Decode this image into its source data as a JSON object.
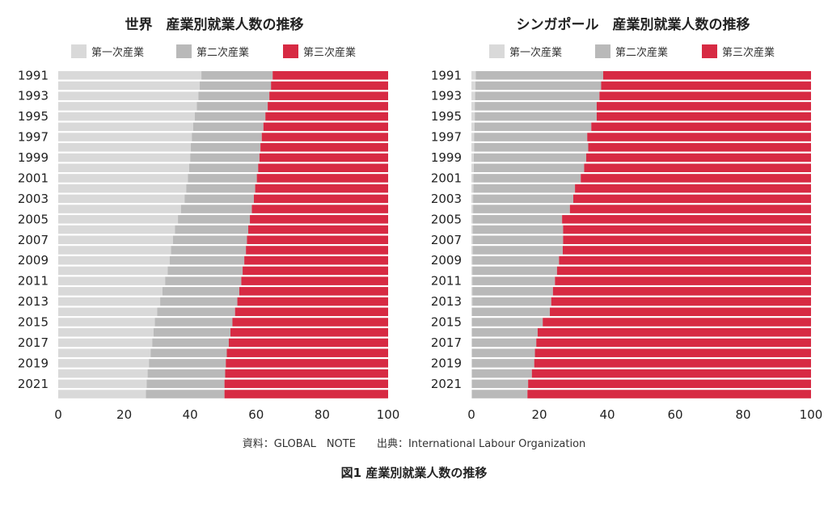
{
  "colors": {
    "primary": "#d9d9d9",
    "secondary": "#b9b9b9",
    "tertiary": "#d72a43"
  },
  "chart_data": [
    {
      "type": "bar",
      "orientation": "horizontal",
      "stacked": true,
      "title": "世界　産業別就業人数の推移",
      "categories": [
        1991,
        1992,
        1993,
        1994,
        1995,
        1996,
        1997,
        1998,
        1999,
        2000,
        2001,
        2002,
        2003,
        2004,
        2005,
        2006,
        2007,
        2008,
        2009,
        2010,
        2011,
        2012,
        2013,
        2014,
        2015,
        2016,
        2017,
        2018,
        2019,
        2020,
        2021,
        2022
      ],
      "category_tick_labels": [
        "1991",
        "1993",
        "1995",
        "1997",
        "1999",
        "2001",
        "2003",
        "2005",
        "2007",
        "2009",
        "2011",
        "2013",
        "2015",
        "2017",
        "2019",
        "2021"
      ],
      "series": [
        {
          "name": "第一次産業",
          "values": [
            43.4,
            42.9,
            42.5,
            42.0,
            41.4,
            40.9,
            40.5,
            40.2,
            40.0,
            39.7,
            39.3,
            38.8,
            38.3,
            37.2,
            36.3,
            35.4,
            34.8,
            34.2,
            33.8,
            33.2,
            32.4,
            31.6,
            30.9,
            30.0,
            29.3,
            28.9,
            28.5,
            28.0,
            27.5,
            27.1,
            26.8,
            26.6
          ]
        },
        {
          "name": "第二次産業",
          "values": [
            21.6,
            21.6,
            21.5,
            21.5,
            21.4,
            21.3,
            21.2,
            21.1,
            21.0,
            20.9,
            20.9,
            20.9,
            21.0,
            21.5,
            21.8,
            22.2,
            22.4,
            22.7,
            22.6,
            22.7,
            23.1,
            23.3,
            23.4,
            23.6,
            23.5,
            23.3,
            23.2,
            23.1,
            23.3,
            23.5,
            23.6,
            23.8
          ]
        },
        {
          "name": "第三次産業",
          "values": [
            35.0,
            35.5,
            36.0,
            36.5,
            37.2,
            37.8,
            38.3,
            38.7,
            39.0,
            39.4,
            39.8,
            40.3,
            40.7,
            41.3,
            41.9,
            42.4,
            42.8,
            43.1,
            43.6,
            44.1,
            44.5,
            45.1,
            45.7,
            46.4,
            47.2,
            47.8,
            48.3,
            48.9,
            49.2,
            49.4,
            49.6,
            49.6
          ]
        }
      ],
      "xlim": [
        0,
        100
      ],
      "xticks": [
        0,
        20,
        40,
        60,
        80,
        100
      ],
      "legend_position": "top"
    },
    {
      "type": "bar",
      "orientation": "horizontal",
      "stacked": true,
      "title": "シンガポール　産業別就業人数の推移",
      "categories": [
        1991,
        1992,
        1993,
        1994,
        1995,
        1996,
        1997,
        1998,
        1999,
        2000,
        2001,
        2002,
        2003,
        2004,
        2005,
        2006,
        2007,
        2008,
        2009,
        2010,
        2011,
        2012,
        2013,
        2014,
        2015,
        2016,
        2017,
        2018,
        2019,
        2020,
        2021,
        2022
      ],
      "category_tick_labels": [
        "1991",
        "1993",
        "1995",
        "1997",
        "1999",
        "2001",
        "2003",
        "2005",
        "2007",
        "2009",
        "2011",
        "2013",
        "2015",
        "2017",
        "2019",
        "2021"
      ],
      "series": [
        {
          "name": "第一次産業",
          "values": [
            1.3,
            1.2,
            1.1,
            1.0,
            1.0,
            0.9,
            0.8,
            0.8,
            0.7,
            0.7,
            0.6,
            0.6,
            0.5,
            0.5,
            0.4,
            0.4,
            0.4,
            0.4,
            0.3,
            0.3,
            0.3,
            0.3,
            0.3,
            0.2,
            0.2,
            0.2,
            0.2,
            0.2,
            0.2,
            0.2,
            0.2,
            0.2
          ]
        },
        {
          "name": "第二次産業",
          "values": [
            37.5,
            37.0,
            36.6,
            35.9,
            35.9,
            34.4,
            33.3,
            33.6,
            33.1,
            32.5,
            31.6,
            29.9,
            29.5,
            28.5,
            26.3,
            26.6,
            26.6,
            26.5,
            25.5,
            24.9,
            24.3,
            23.7,
            23.2,
            22.9,
            20.8,
            19.3,
            18.9,
            18.5,
            18.3,
            17.6,
            16.5,
            16.3
          ]
        },
        {
          "name": "第三次産業",
          "values": [
            61.2,
            61.8,
            62.3,
            63.1,
            63.1,
            64.7,
            65.9,
            65.6,
            66.2,
            66.8,
            67.8,
            69.5,
            70.0,
            71.0,
            73.3,
            73.0,
            73.0,
            73.1,
            74.2,
            74.8,
            75.4,
            76.0,
            76.5,
            76.9,
            79.0,
            80.5,
            80.9,
            81.3,
            81.5,
            82.2,
            83.3,
            83.5
          ]
        }
      ],
      "xlim": [
        0,
        100
      ],
      "xticks": [
        0,
        20,
        40,
        60,
        80,
        100
      ],
      "legend_position": "top"
    }
  ],
  "footer": {
    "source": "資料：GLOBAL　NOTE　　出典：International Labour Organization",
    "caption": "図1 産業別就業人数の推移"
  }
}
